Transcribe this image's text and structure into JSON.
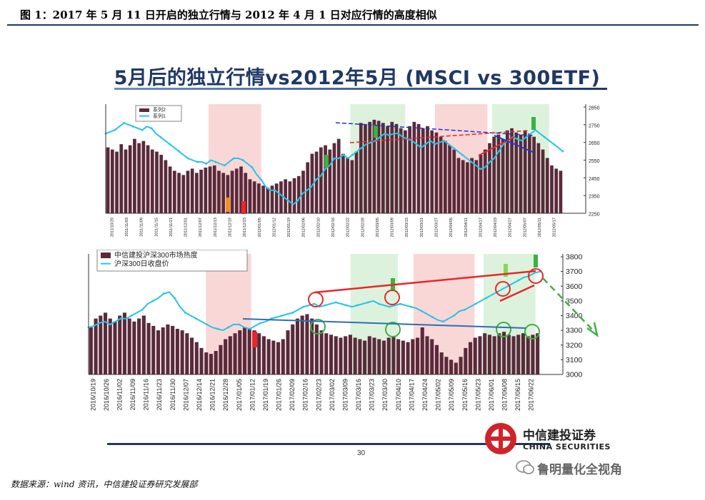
{
  "header": {
    "figure_title": "图 1：2017 年 5 月 11 日开启的独立行情与 2012 年 4 月 1 日对应行情的高度相似"
  },
  "slide": {
    "title": "5月后的独立行情vs2012年5月 (MSCI vs 300ETF)",
    "page_number": "30",
    "logo_cn": "中信建投证券",
    "logo_en": "CHINA SECURITIES"
  },
  "source": "数据来源：wind 资讯，中信建投证券研究发展部",
  "watermark": "鲁明量化全视角",
  "colors": {
    "bar": "#5a2a3a",
    "line": "#27c4e6",
    "shade_pink": "#f9d7d7",
    "shade_green": "#dcf2dc",
    "red": "#e8262b",
    "blue": "#2e6db4",
    "green": "#3cb043",
    "title_blue": "#1f3864"
  },
  "chart_data": [
    {
      "type": "bar",
      "title": "",
      "legend": [
        "系列2",
        "系列1"
      ],
      "y_right_ticks": [
        "2850",
        "2750",
        "2650",
        "2550",
        "2450",
        "2350",
        "2250"
      ],
      "ylim": [
        2250,
        2850
      ],
      "x_ticks": [
        "2011/10/20",
        "2011/11/03",
        "2011/11/09",
        "2011/11/15",
        "2011/11/21",
        "2011/12/01",
        "2011/12/07",
        "2011/12/13",
        "2011/12/19",
        "2011/12/23",
        "2012/01/05",
        "2012/01/12",
        "2012/01/19",
        "2012/02/06",
        "2012/02/10",
        "2012/02/16",
        "2012/02/22",
        "2012/02/28",
        "2012/03/05",
        "2012/03/09",
        "2012/03/15",
        "2012/03/21",
        "2012/03/27",
        "2012/04/05",
        "2012/04/11",
        "2012/04/17",
        "2012/04/23",
        "2012/04/27",
        "2012/05/07",
        "2012/05/11",
        "2012/05/17"
      ],
      "bars": [
        0.62,
        0.6,
        0.58,
        0.65,
        0.6,
        0.64,
        0.7,
        0.66,
        0.68,
        0.64,
        0.6,
        0.58,
        0.55,
        0.5,
        0.44,
        0.4,
        0.38,
        0.36,
        0.4,
        0.42,
        0.38,
        0.41,
        0.43,
        0.44,
        0.45,
        0.4,
        0.38,
        0.36,
        0.4,
        0.42,
        0.44,
        0.38,
        0.32,
        0.3,
        0.28,
        0.26,
        0.24,
        0.26,
        0.28,
        0.3,
        0.32,
        0.3,
        0.33,
        0.35,
        0.4,
        0.48,
        0.56,
        0.58,
        0.62,
        0.64,
        0.6,
        0.66,
        0.7,
        0.56,
        0.52,
        0.5,
        0.58,
        0.85,
        0.84,
        0.86,
        0.88,
        0.87,
        0.85,
        0.82,
        0.86,
        0.84,
        0.8,
        0.78,
        0.82,
        0.86,
        0.84,
        0.8,
        0.82,
        0.78,
        0.76,
        0.72,
        0.68,
        0.64,
        0.6,
        0.52,
        0.5,
        0.48,
        0.52,
        0.5,
        0.55,
        0.6,
        0.66,
        0.72,
        0.74,
        0.7,
        0.78,
        0.8,
        0.76,
        0.74,
        0.78,
        0.75,
        0.72,
        0.66,
        0.6,
        0.52,
        0.45,
        0.42,
        0.4
      ],
      "line": [
        2700,
        2710,
        2720,
        2740,
        2760,
        2750,
        2740,
        2730,
        2720,
        2740,
        2730,
        2700,
        2680,
        2660,
        2640,
        2620,
        2600,
        2580,
        2560,
        2550,
        2540,
        2540,
        2530,
        2550,
        2540,
        2530,
        2520,
        2540,
        2560,
        2560,
        2550,
        2530,
        2510,
        2470,
        2440,
        2400,
        2380,
        2380,
        2360,
        2340,
        2320,
        2300,
        2320,
        2360,
        2380,
        2400,
        2440,
        2460,
        2500,
        2520,
        2560,
        2560,
        2580,
        2560,
        2580,
        2600,
        2620,
        2640,
        2650,
        2660,
        2680,
        2700,
        2690,
        2700,
        2700,
        2680,
        2670,
        2660,
        2640,
        2620,
        2640,
        2660,
        2640,
        2650,
        2660,
        2640,
        2620,
        2600,
        2580,
        2560,
        2540,
        2520,
        2500,
        2510,
        2540,
        2560,
        2600,
        2640,
        2660,
        2680,
        2670,
        2660,
        2680,
        2700,
        2720,
        2700,
        2680,
        2660,
        2640,
        2620,
        2600
      ]
    },
    {
      "type": "bar",
      "title": "",
      "legend": [
        "中信建投沪深300市场热度",
        "沪深300日收盘价"
      ],
      "y_right_ticks": [
        "3800",
        "3700",
        "3600",
        "3500",
        "3400",
        "3300",
        "3200",
        "3100",
        "3000"
      ],
      "ylim": [
        3000,
        3800
      ],
      "x_ticks": [
        "2016/10/19",
        "2016/10/26",
        "2016/11/02",
        "2016/11/09",
        "2016/11/16",
        "2016/11/23",
        "2016/11/30",
        "2016/12/07",
        "2016/12/14",
        "2016/12/21",
        "2016/12/28",
        "2017/01/05",
        "2017/01/12",
        "2017/01/19",
        "2017/01/26",
        "2017/02/09",
        "2017/02/16",
        "2017/02/23",
        "2017/03/02",
        "2017/03/09",
        "2017/03/16",
        "2017/03/23",
        "2017/03/30",
        "2017/04/10",
        "2017/04/17",
        "2017/04/24",
        "2017/05/02",
        "2017/05/09",
        "2017/05/16",
        "2017/05/23",
        "2017/06/01",
        "2017/06/08",
        "2017/06/15",
        "2017/06/22"
      ],
      "bars": [
        3320,
        3380,
        3400,
        3420,
        3380,
        3360,
        3400,
        3420,
        3380,
        3360,
        3380,
        3400,
        3350,
        3330,
        3300,
        3320,
        3340,
        3330,
        3310,
        3300,
        3280,
        3250,
        3220,
        3180,
        3150,
        3140,
        3160,
        3200,
        3240,
        3260,
        3280,
        3300,
        3320,
        3310,
        3300,
        3280,
        3260,
        3240,
        3230,
        3220,
        3240,
        3300,
        3340,
        3380,
        3400,
        3410,
        3380,
        3340,
        3300,
        3280,
        3270,
        3260,
        3250,
        3260,
        3270,
        3250,
        3240,
        3230,
        3260,
        3250,
        3240,
        3230,
        3250,
        3260,
        3240,
        3230,
        3220,
        3240,
        3250,
        3320,
        3260,
        3240,
        3200,
        3150,
        3120,
        3100,
        3080,
        3120,
        3180,
        3220,
        3250,
        3260,
        3280,
        3270,
        3260,
        3280,
        3290,
        3270,
        3260,
        3270,
        3280,
        3260,
        3270,
        3280
      ],
      "line": [
        3320,
        3330,
        3350,
        3360,
        3340,
        3360,
        3380,
        3380,
        3400,
        3420,
        3440,
        3480,
        3500,
        3520,
        3550,
        3560,
        3520,
        3460,
        3420,
        3400,
        3380,
        3360,
        3340,
        3320,
        3310,
        3300,
        3320,
        3340,
        3340,
        3320,
        3310,
        3330,
        3350,
        3360,
        3380,
        3390,
        3400,
        3410,
        3420,
        3440,
        3460,
        3470,
        3480,
        3460,
        3470,
        3480,
        3490,
        3480,
        3470,
        3460,
        3470,
        3480,
        3490,
        3500,
        3480,
        3470,
        3460,
        3470,
        3480,
        3470,
        3460,
        3450,
        3430,
        3410,
        3390,
        3370,
        3360,
        3380,
        3400,
        3430,
        3440,
        3460,
        3480,
        3500,
        3520,
        3540,
        3560,
        3580,
        3600,
        3620,
        3640,
        3660,
        3670,
        3690,
        3700
      ]
    }
  ]
}
